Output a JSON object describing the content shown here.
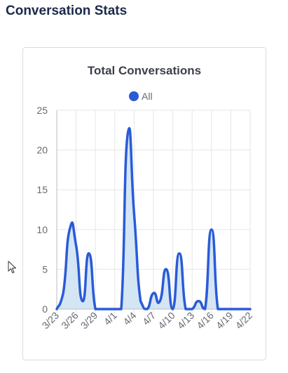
{
  "page": {
    "title": "Conversation Stats"
  },
  "colors": {
    "line": "#2a5bd7",
    "fill": "#cfe3f3",
    "grid": "#e6e6e6",
    "axis": "#bdbdbd",
    "title": "#3b3f4a",
    "tick": "#666a73"
  },
  "chart_data": {
    "type": "area",
    "title": "Total Conversations",
    "xlabel": "",
    "ylabel": "",
    "legend": {
      "placement": "top-center",
      "entries": [
        "All"
      ]
    },
    "grid": true,
    "ylim": [
      0,
      25
    ],
    "y_ticks": [
      0,
      5,
      10,
      15,
      20,
      25
    ],
    "x_tick_labels": [
      "3/23",
      "3/26",
      "3/29",
      "4/1",
      "4/4",
      "4/7",
      "4/10",
      "4/13",
      "4/16",
      "4/19",
      "4/22"
    ],
    "x_tick_dates": [
      "3/23",
      "3/26",
      "3/29",
      "4/1",
      "4/4",
      "4/7",
      "4/10",
      "4/13",
      "4/16",
      "4/19",
      "4/22"
    ],
    "x": [
      "3/23",
      "3/24",
      "3/25",
      "3/26",
      "3/27",
      "3/28",
      "3/29",
      "3/30",
      "3/31",
      "4/1",
      "4/2",
      "4/3",
      "4/4",
      "4/5",
      "4/6",
      "4/7",
      "4/8",
      "4/9",
      "4/10",
      "4/11",
      "4/12",
      "4/13",
      "4/14",
      "4/15",
      "4/16",
      "4/17",
      "4/18",
      "4/19",
      "4/20",
      "4/21",
      "4/22"
    ],
    "series": [
      {
        "name": "All",
        "values": [
          0,
          2,
          10,
          8,
          1,
          7,
          0,
          0,
          0,
          0,
          0,
          22,
          12,
          1,
          0,
          2,
          1,
          5,
          0,
          7,
          0,
          0,
          1,
          0,
          10,
          0,
          0,
          0,
          0,
          0,
          0
        ]
      }
    ]
  }
}
